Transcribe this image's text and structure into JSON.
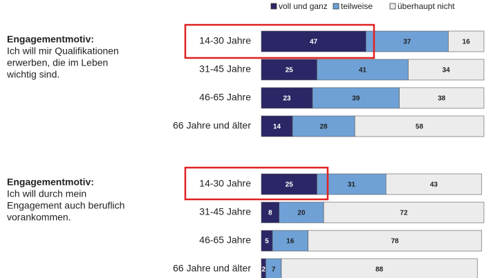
{
  "chart_data": {
    "type": "bar",
    "stacked": true,
    "xlim": [
      0,
      100
    ],
    "categories": [
      "14-30 Jahre",
      "31-45 Jahre",
      "46-65 Jahre",
      "66 Jahre und älter",
      "14-30 Jahre",
      "31-45 Jahre",
      "46-65 Jahre",
      "66 Jahre und älter"
    ],
    "series": [
      {
        "name": "voll und ganz",
        "color": "#2b2766",
        "values": [
          47,
          25,
          23,
          14,
          25,
          8,
          5,
          2
        ]
      },
      {
        "name": "teilweise",
        "color": "#6fa1d6",
        "values": [
          37,
          41,
          39,
          28,
          31,
          20,
          16,
          7
        ]
      },
      {
        "name": "überhaupt nicht",
        "color": "#ececec",
        "values": [
          16,
          34,
          38,
          58,
          43,
          72,
          78,
          88
        ]
      }
    ],
    "groups": [
      {
        "title": "Engagementmotiv:",
        "lines": [
          "Ich will mir Qualifikationen",
          "erwerben, die im Leben",
          "wichtig sind."
        ]
      },
      {
        "title": "Engagementmotiv:",
        "lines": [
          "Ich will durch mein",
          "Engagement auch beruflich",
          "vorankommen."
        ]
      }
    ]
  }
}
